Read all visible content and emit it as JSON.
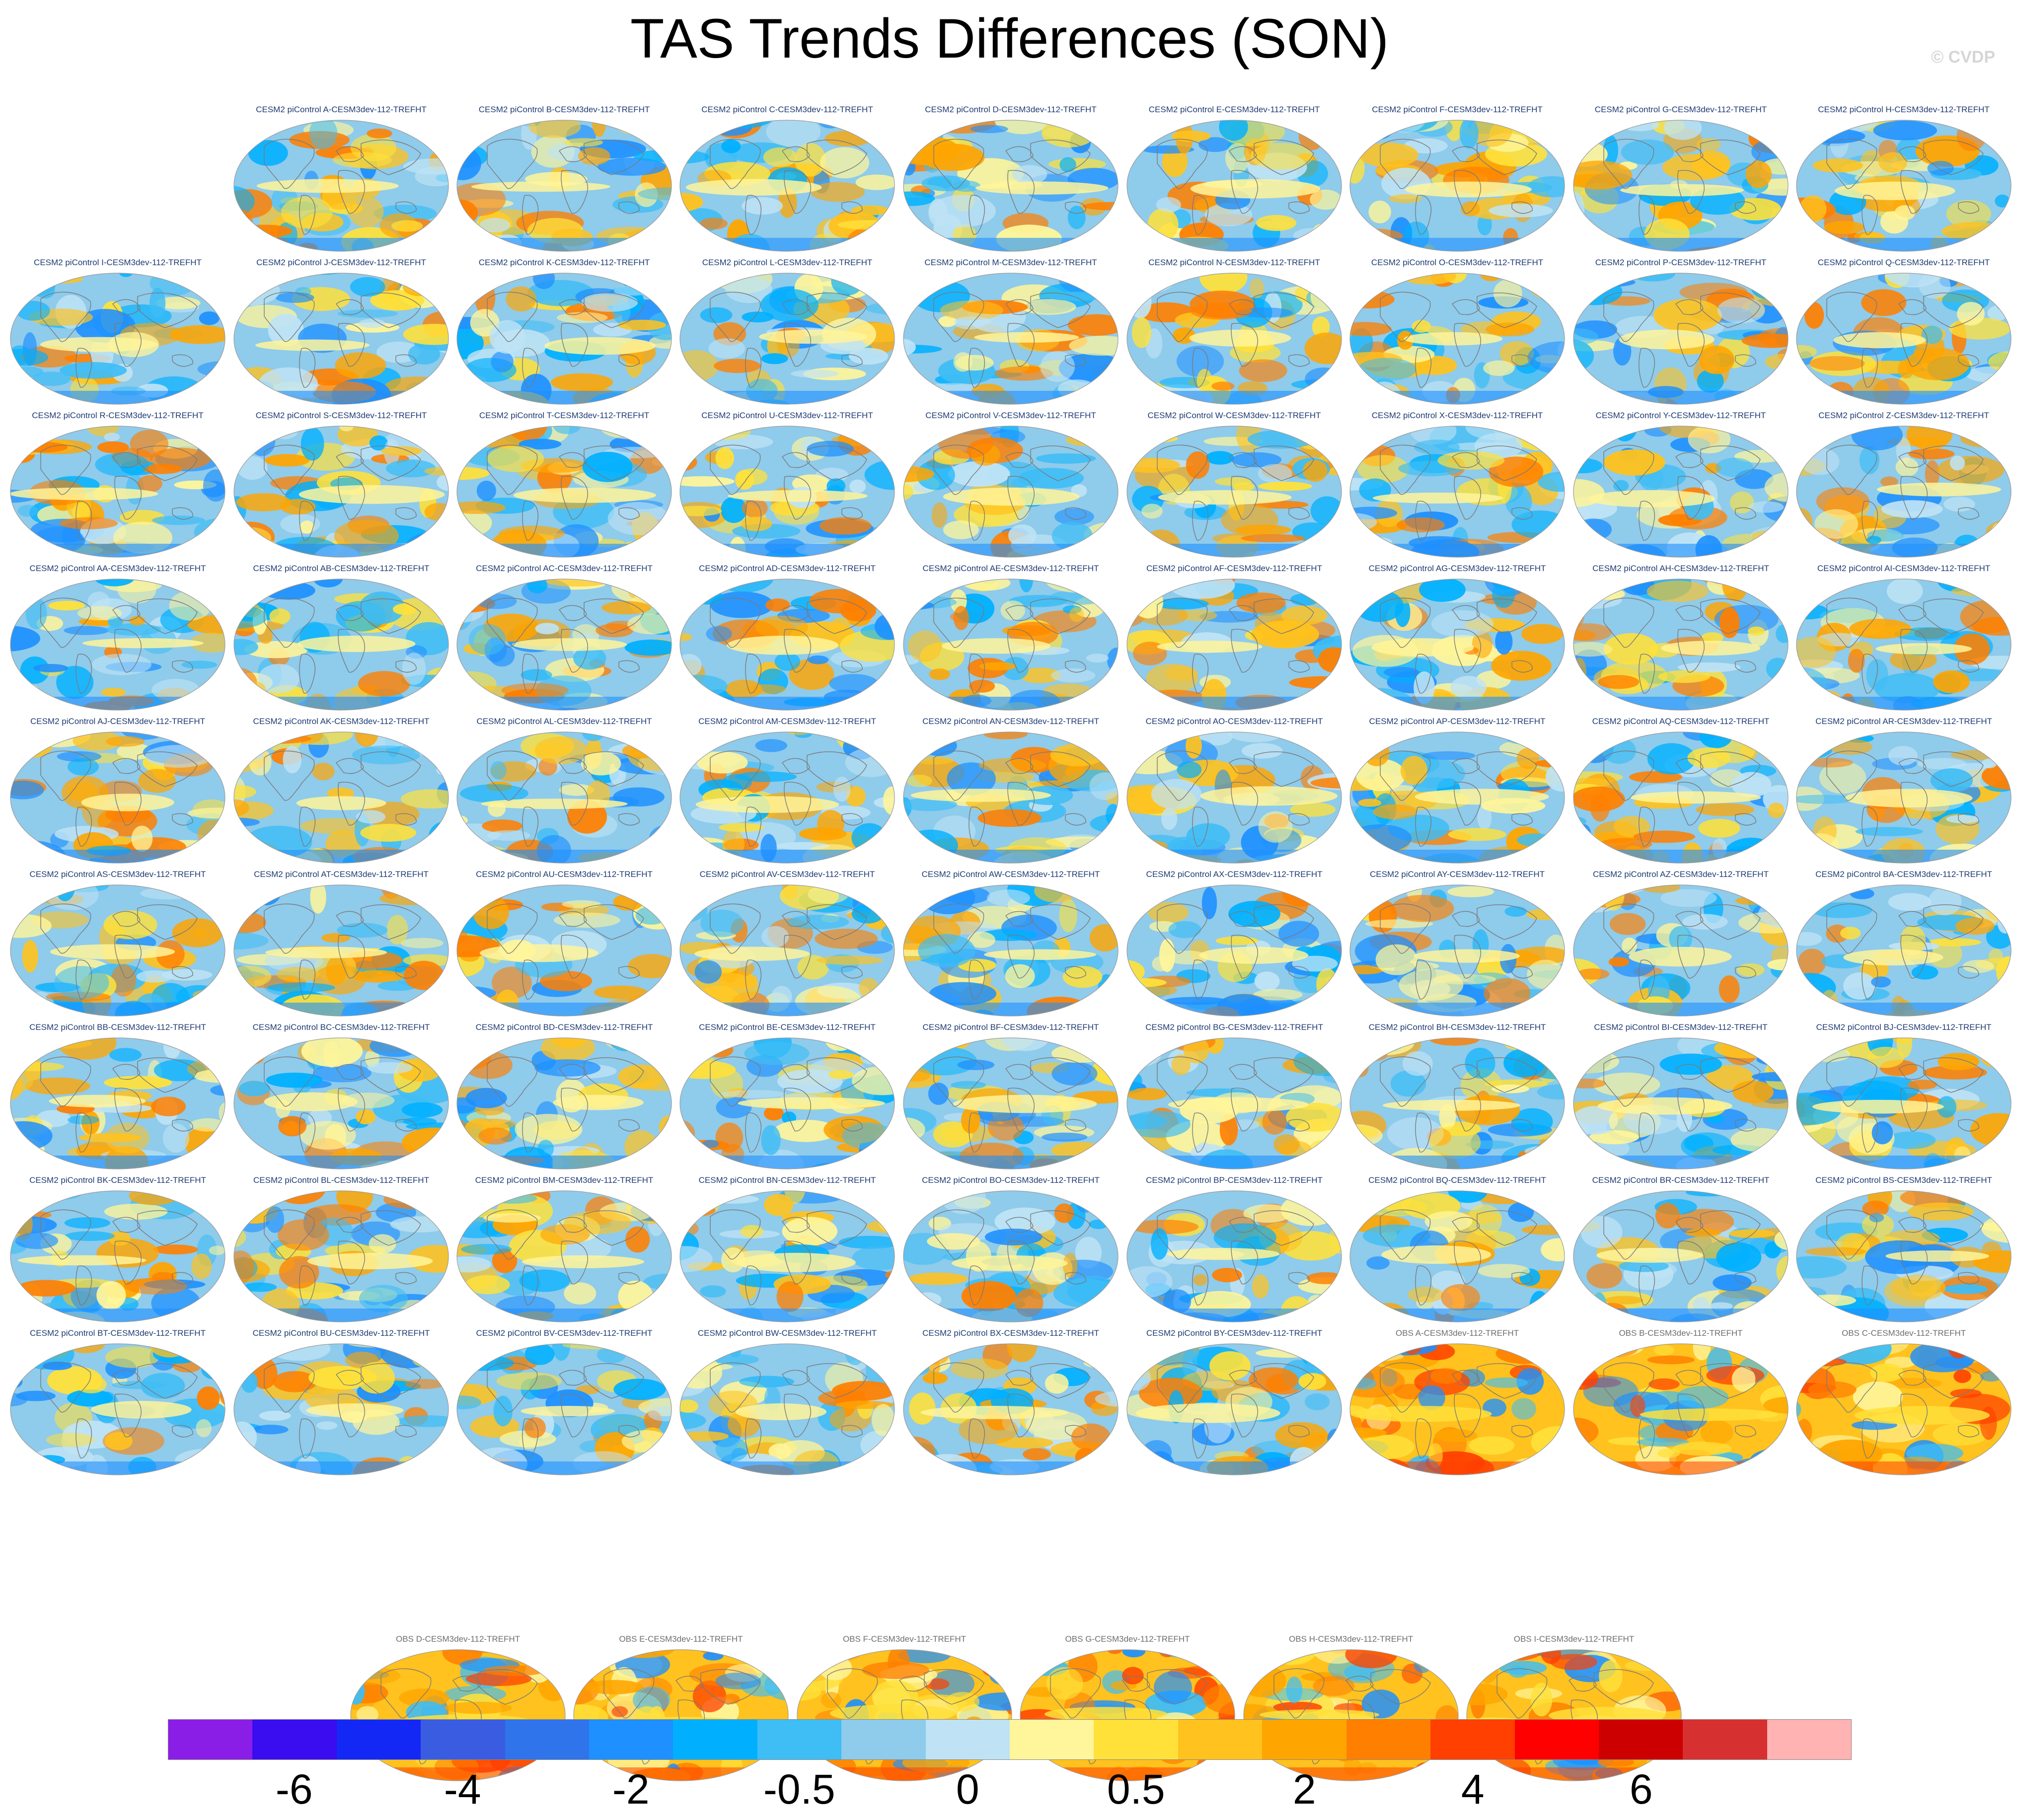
{
  "chart_data": {
    "type": "heatmap",
    "title": "TAS Trends Differences (SON)",
    "watermark": "© CVDP",
    "projection": "global map (Robinson-like ellipse), SON season",
    "units_note": "trend difference",
    "panels": [
      {
        "label": "CESM2 piControl A-CESM3dev-112-TREFHT",
        "kind": "model"
      },
      {
        "label": "CESM2 piControl B-CESM3dev-112-TREFHT",
        "kind": "model"
      },
      {
        "label": "CESM2 piControl C-CESM3dev-112-TREFHT",
        "kind": "model"
      },
      {
        "label": "CESM2 piControl D-CESM3dev-112-TREFHT",
        "kind": "model"
      },
      {
        "label": "CESM2 piControl E-CESM3dev-112-TREFHT",
        "kind": "model"
      },
      {
        "label": "CESM2 piControl F-CESM3dev-112-TREFHT",
        "kind": "model"
      },
      {
        "label": "CESM2 piControl G-CESM3dev-112-TREFHT",
        "kind": "model"
      },
      {
        "label": "CESM2 piControl H-CESM3dev-112-TREFHT",
        "kind": "model"
      },
      {
        "label": "CESM2 piControl I-CESM3dev-112-TREFHT",
        "kind": "model"
      },
      {
        "label": "CESM2 piControl J-CESM3dev-112-TREFHT",
        "kind": "model"
      },
      {
        "label": "CESM2 piControl K-CESM3dev-112-TREFHT",
        "kind": "model"
      },
      {
        "label": "CESM2 piControl L-CESM3dev-112-TREFHT",
        "kind": "model"
      },
      {
        "label": "CESM2 piControl M-CESM3dev-112-TREFHT",
        "kind": "model"
      },
      {
        "label": "CESM2 piControl N-CESM3dev-112-TREFHT",
        "kind": "model"
      },
      {
        "label": "CESM2 piControl O-CESM3dev-112-TREFHT",
        "kind": "model"
      },
      {
        "label": "CESM2 piControl P-CESM3dev-112-TREFHT",
        "kind": "model"
      },
      {
        "label": "CESM2 piControl Q-CESM3dev-112-TREFHT",
        "kind": "model"
      },
      {
        "label": "CESM2 piControl R-CESM3dev-112-TREFHT",
        "kind": "model"
      },
      {
        "label": "CESM2 piControl S-CESM3dev-112-TREFHT",
        "kind": "model"
      },
      {
        "label": "CESM2 piControl T-CESM3dev-112-TREFHT",
        "kind": "model"
      },
      {
        "label": "CESM2 piControl U-CESM3dev-112-TREFHT",
        "kind": "model"
      },
      {
        "label": "CESM2 piControl V-CESM3dev-112-TREFHT",
        "kind": "model"
      },
      {
        "label": "CESM2 piControl W-CESM3dev-112-TREFHT",
        "kind": "model"
      },
      {
        "label": "CESM2 piControl X-CESM3dev-112-TREFHT",
        "kind": "model"
      },
      {
        "label": "CESM2 piControl Y-CESM3dev-112-TREFHT",
        "kind": "model"
      },
      {
        "label": "CESM2 piControl Z-CESM3dev-112-TREFHT",
        "kind": "model"
      },
      {
        "label": "CESM2 piControl AA-CESM3dev-112-TREFHT",
        "kind": "model"
      },
      {
        "label": "CESM2 piControl AB-CESM3dev-112-TREFHT",
        "kind": "model"
      },
      {
        "label": "CESM2 piControl AC-CESM3dev-112-TREFHT",
        "kind": "model"
      },
      {
        "label": "CESM2 piControl AD-CESM3dev-112-TREFHT",
        "kind": "model"
      },
      {
        "label": "CESM2 piControl AE-CESM3dev-112-TREFHT",
        "kind": "model"
      },
      {
        "label": "CESM2 piControl AF-CESM3dev-112-TREFHT",
        "kind": "model"
      },
      {
        "label": "CESM2 piControl AG-CESM3dev-112-TREFHT",
        "kind": "model"
      },
      {
        "label": "CESM2 piControl AH-CESM3dev-112-TREFHT",
        "kind": "model"
      },
      {
        "label": "CESM2 piControl AI-CESM3dev-112-TREFHT",
        "kind": "model"
      },
      {
        "label": "CESM2 piControl AJ-CESM3dev-112-TREFHT",
        "kind": "model"
      },
      {
        "label": "CESM2 piControl AK-CESM3dev-112-TREFHT",
        "kind": "model"
      },
      {
        "label": "CESM2 piControl AL-CESM3dev-112-TREFHT",
        "kind": "model"
      },
      {
        "label": "CESM2 piControl AM-CESM3dev-112-TREFHT",
        "kind": "model"
      },
      {
        "label": "CESM2 piControl AN-CESM3dev-112-TREFHT",
        "kind": "model"
      },
      {
        "label": "CESM2 piControl AO-CESM3dev-112-TREFHT",
        "kind": "model"
      },
      {
        "label": "CESM2 piControl AP-CESM3dev-112-TREFHT",
        "kind": "model"
      },
      {
        "label": "CESM2 piControl AQ-CESM3dev-112-TREFHT",
        "kind": "model"
      },
      {
        "label": "CESM2 piControl AR-CESM3dev-112-TREFHT",
        "kind": "model"
      },
      {
        "label": "CESM2 piControl AS-CESM3dev-112-TREFHT",
        "kind": "model"
      },
      {
        "label": "CESM2 piControl AT-CESM3dev-112-TREFHT",
        "kind": "model"
      },
      {
        "label": "CESM2 piControl AU-CESM3dev-112-TREFHT",
        "kind": "model"
      },
      {
        "label": "CESM2 piControl AV-CESM3dev-112-TREFHT",
        "kind": "model"
      },
      {
        "label": "CESM2 piControl AW-CESM3dev-112-TREFHT",
        "kind": "model"
      },
      {
        "label": "CESM2 piControl AX-CESM3dev-112-TREFHT",
        "kind": "model"
      },
      {
        "label": "CESM2 piControl AY-CESM3dev-112-TREFHT",
        "kind": "model"
      },
      {
        "label": "CESM2 piControl AZ-CESM3dev-112-TREFHT",
        "kind": "model"
      },
      {
        "label": "CESM2 piControl BA-CESM3dev-112-TREFHT",
        "kind": "model"
      },
      {
        "label": "CESM2 piControl BB-CESM3dev-112-TREFHT",
        "kind": "model"
      },
      {
        "label": "CESM2 piControl BC-CESM3dev-112-TREFHT",
        "kind": "model"
      },
      {
        "label": "CESM2 piControl BD-CESM3dev-112-TREFHT",
        "kind": "model"
      },
      {
        "label": "CESM2 piControl BE-CESM3dev-112-TREFHT",
        "kind": "model"
      },
      {
        "label": "CESM2 piControl BF-CESM3dev-112-TREFHT",
        "kind": "model"
      },
      {
        "label": "CESM2 piControl BG-CESM3dev-112-TREFHT",
        "kind": "model"
      },
      {
        "label": "CESM2 piControl BH-CESM3dev-112-TREFHT",
        "kind": "model"
      },
      {
        "label": "CESM2 piControl BI-CESM3dev-112-TREFHT",
        "kind": "model"
      },
      {
        "label": "CESM2 piControl BJ-CESM3dev-112-TREFHT",
        "kind": "model"
      },
      {
        "label": "CESM2 piControl BK-CESM3dev-112-TREFHT",
        "kind": "model"
      },
      {
        "label": "CESM2 piControl BL-CESM3dev-112-TREFHT",
        "kind": "model"
      },
      {
        "label": "CESM2 piControl BM-CESM3dev-112-TREFHT",
        "kind": "model"
      },
      {
        "label": "CESM2 piControl BN-CESM3dev-112-TREFHT",
        "kind": "model"
      },
      {
        "label": "CESM2 piControl BO-CESM3dev-112-TREFHT",
        "kind": "model"
      },
      {
        "label": "CESM2 piControl BP-CESM3dev-112-TREFHT",
        "kind": "model"
      },
      {
        "label": "CESM2 piControl BQ-CESM3dev-112-TREFHT",
        "kind": "model"
      },
      {
        "label": "CESM2 piControl BR-CESM3dev-112-TREFHT",
        "kind": "model"
      },
      {
        "label": "CESM2 piControl BS-CESM3dev-112-TREFHT",
        "kind": "model"
      },
      {
        "label": "CESM2 piControl BT-CESM3dev-112-TREFHT",
        "kind": "model"
      },
      {
        "label": "CESM2 piControl BU-CESM3dev-112-TREFHT",
        "kind": "model"
      },
      {
        "label": "CESM2 piControl BV-CESM3dev-112-TREFHT",
        "kind": "model"
      },
      {
        "label": "CESM2 piControl BW-CESM3dev-112-TREFHT",
        "kind": "model"
      },
      {
        "label": "CESM2 piControl BX-CESM3dev-112-TREFHT",
        "kind": "model"
      },
      {
        "label": "CESM2 piControl BY-CESM3dev-112-TREFHT",
        "kind": "model"
      },
      {
        "label": "OBS A-CESM3dev-112-TREFHT",
        "kind": "obs"
      },
      {
        "label": "OBS B-CESM3dev-112-TREFHT",
        "kind": "obs"
      },
      {
        "label": "OBS C-CESM3dev-112-TREFHT",
        "kind": "obs"
      },
      {
        "label": "OBS D-CESM3dev-112-TREFHT",
        "kind": "obs"
      },
      {
        "label": "OBS E-CESM3dev-112-TREFHT",
        "kind": "obs"
      },
      {
        "label": "OBS F-CESM3dev-112-TREFHT",
        "kind": "obs"
      },
      {
        "label": "OBS G-CESM3dev-112-TREFHT",
        "kind": "obs"
      },
      {
        "label": "OBS H-CESM3dev-112-TREFHT",
        "kind": "obs"
      },
      {
        "label": "OBS I-CESM3dev-112-TREFHT",
        "kind": "obs"
      }
    ],
    "colorbar": {
      "colors": [
        "#8a1ee6",
        "#3a0cf0",
        "#1428f5",
        "#3a5ce0",
        "#2f74ea",
        "#1e90ff",
        "#00b0ff",
        "#3fbdf5",
        "#8fcbeb",
        "#bfe3f5",
        "#fff59a",
        "#ffe13a",
        "#ffc21e",
        "#ffa500",
        "#ff7f00",
        "#ff4000",
        "#ff0000",
        "#cc0000",
        "#d73030",
        "#ffb3b3"
      ],
      "tick_labels": [
        "-6",
        "-4",
        "-2",
        "-0.5",
        "0",
        "0.5",
        "2",
        "4",
        "6"
      ],
      "tick_boundary_index": [
        2,
        4,
        6,
        8,
        10,
        12,
        14,
        16,
        18
      ]
    },
    "palette": {
      "model_base": "#8fcbeb",
      "model_blobs": [
        "#3fbdf5",
        "#1e90ff",
        "#00b0ff",
        "#bfe3f5",
        "#fff59a",
        "#ffe13a",
        "#ffc21e",
        "#ffa500",
        "#ff7f00"
      ],
      "obs_base": "#ffc21e",
      "obs_blobs": [
        "#ffe13a",
        "#ffa500",
        "#fff59a",
        "#ff7f00",
        "#3fbdf5",
        "#1e90ff",
        "#ff4000"
      ],
      "land_outline": "#7a7a7a"
    }
  }
}
